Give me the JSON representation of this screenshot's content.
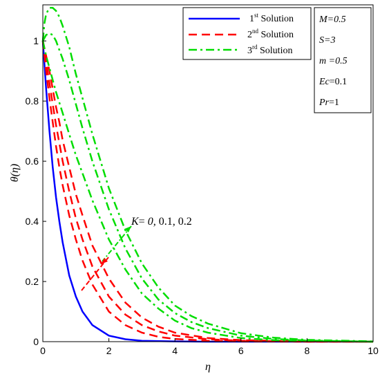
{
  "chart_data": {
    "type": "line",
    "xlabel": "η",
    "ylabel": "θ(η)",
    "xlim": [
      0,
      10
    ],
    "ylim": [
      0,
      1.1
    ],
    "xticks": [
      "0",
      "2",
      "4",
      "6",
      "8",
      "10"
    ],
    "yticks": [
      "0",
      "0.2",
      "0.4",
      "0.6",
      "0.8",
      "1"
    ],
    "grid": false,
    "legend_position": "top-right",
    "legend": [
      {
        "base": "1",
        "sup": "st",
        "text": " Solution",
        "style": "solid",
        "color": "#0000ff"
      },
      {
        "base": "2",
        "sup": "nd",
        "text": " Solution",
        "style": "dashed",
        "color": "#ff0000"
      },
      {
        "base": "3",
        "sup": "rd",
        "text": " Solution",
        "style": "dashdot",
        "color": "#00dd00"
      }
    ],
    "params": [
      {
        "name": "M",
        "value": "=0.5",
        "value_italic": true
      },
      {
        "name": "S",
        "value": "=3",
        "value_italic": true
      },
      {
        "name": "m",
        "value": " =0.5",
        "value_italic": true
      },
      {
        "name": "Ec",
        "value": "=0.1",
        "value_italic": false
      },
      {
        "name": "Pr",
        "value": "=1",
        "value_italic": false
      }
    ],
    "annotation": {
      "k": "K",
      "eq": "= ",
      "zero": "0,",
      "rest": " 0.1, 0.2"
    },
    "series": [
      {
        "style": "solid",
        "color": "#0000ff",
        "x": [
          0,
          0.1,
          0.2,
          0.3,
          0.4,
          0.5,
          0.6,
          0.8,
          1.0,
          1.2,
          1.5,
          2.0,
          2.5,
          3.0,
          4.0,
          5.0,
          6.0,
          8.0,
          10.0
        ],
        "y": [
          1,
          0.84,
          0.7,
          0.58,
          0.48,
          0.4,
          0.33,
          0.22,
          0.15,
          0.1,
          0.055,
          0.02,
          0.008,
          0.003,
          0.001,
          0,
          0,
          0,
          0
        ]
      },
      {
        "style": "dashed",
        "color": "#ff0000",
        "x": [
          0,
          0.1,
          0.2,
          0.3,
          0.4,
          0.5,
          0.6,
          0.8,
          1.0,
          1.2,
          1.5,
          2.0,
          2.5,
          3.0,
          3.5,
          4.0,
          5.0,
          6.0,
          8.0,
          10.0
        ],
        "y": [
          1,
          0.9,
          0.81,
          0.73,
          0.65,
          0.58,
          0.52,
          0.42,
          0.34,
          0.27,
          0.19,
          0.1,
          0.055,
          0.03,
          0.016,
          0.009,
          0.003,
          0.001,
          0,
          0
        ]
      },
      {
        "style": "dashed",
        "color": "#ff0000",
        "x": [
          0,
          0.1,
          0.2,
          0.3,
          0.4,
          0.5,
          0.6,
          0.8,
          1.0,
          1.2,
          1.5,
          2.0,
          2.5,
          3.0,
          3.5,
          4.0,
          5.0,
          6.0,
          8.0,
          10.0
        ],
        "y": [
          1,
          0.93,
          0.86,
          0.79,
          0.72,
          0.66,
          0.6,
          0.5,
          0.41,
          0.34,
          0.25,
          0.15,
          0.09,
          0.055,
          0.034,
          0.02,
          0.008,
          0.003,
          0,
          0
        ]
      },
      {
        "style": "dashed",
        "color": "#ff0000",
        "x": [
          0,
          0.1,
          0.2,
          0.3,
          0.4,
          0.5,
          0.6,
          0.8,
          1.0,
          1.2,
          1.5,
          2.0,
          2.5,
          3.0,
          3.5,
          4.0,
          5.0,
          6.0,
          8.0,
          10.0
        ],
        "y": [
          1,
          0.95,
          0.9,
          0.84,
          0.78,
          0.73,
          0.67,
          0.58,
          0.49,
          0.42,
          0.32,
          0.21,
          0.13,
          0.08,
          0.05,
          0.03,
          0.012,
          0.005,
          0.001,
          0
        ]
      },
      {
        "style": "dashdot",
        "color": "#00dd00",
        "x": [
          0,
          0.1,
          0.2,
          0.3,
          0.4,
          0.6,
          0.8,
          1.0,
          1.2,
          1.5,
          2.0,
          2.5,
          3.0,
          3.5,
          4.0,
          4.5,
          5.0,
          6.0,
          7.0,
          8.0,
          10.0
        ],
        "y": [
          1,
          0.95,
          0.91,
          0.87,
          0.83,
          0.76,
          0.69,
          0.62,
          0.56,
          0.47,
          0.34,
          0.24,
          0.16,
          0.11,
          0.07,
          0.045,
          0.03,
          0.012,
          0.005,
          0.002,
          0
        ]
      },
      {
        "style": "dashdot",
        "color": "#00dd00",
        "x": [
          0,
          0.1,
          0.2,
          0.3,
          0.4,
          0.6,
          0.8,
          1.0,
          1.2,
          1.5,
          2.0,
          2.5,
          3.0,
          3.5,
          4.0,
          4.5,
          5.0,
          6.0,
          7.0,
          8.0,
          10.0
        ],
        "y": [
          1,
          1.02,
          1.025,
          1.02,
          1.0,
          0.94,
          0.87,
          0.79,
          0.71,
          0.6,
          0.44,
          0.31,
          0.21,
          0.14,
          0.095,
          0.065,
          0.045,
          0.02,
          0.009,
          0.004,
          0
        ]
      },
      {
        "style": "dashdot",
        "color": "#00dd00",
        "x": [
          0,
          0.05,
          0.1,
          0.2,
          0.3,
          0.4,
          0.5,
          0.6,
          0.8,
          1.0,
          1.2,
          1.5,
          2.0,
          2.5,
          3.0,
          3.5,
          4.0,
          4.5,
          5.0,
          6.0,
          7.0,
          8.0,
          10.0
        ],
        "y": [
          1,
          1.06,
          1.09,
          1.11,
          1.11,
          1.1,
          1.08,
          1.05,
          0.98,
          0.89,
          0.81,
          0.69,
          0.51,
          0.37,
          0.26,
          0.18,
          0.12,
          0.085,
          0.06,
          0.028,
          0.013,
          0.006,
          0.001
        ]
      }
    ]
  }
}
